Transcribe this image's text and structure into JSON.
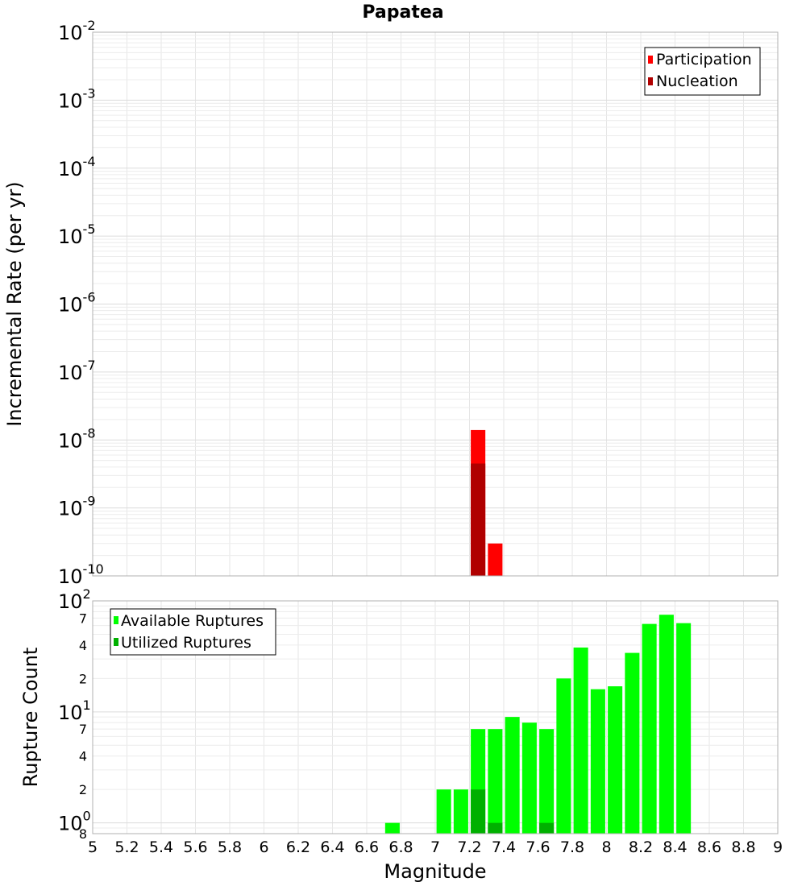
{
  "chart_data": [
    {
      "type": "bar",
      "title": "Papatea",
      "xlabel": "",
      "ylabel": "Incremental Rate (per yr)",
      "xlim": [
        5,
        9
      ],
      "ylim": [
        1e-10,
        0.01
      ],
      "yscale": "log",
      "y_ticks": [
        {
          "base": "10",
          "exp": "-10"
        },
        {
          "base": "10",
          "exp": "-9"
        },
        {
          "base": "10",
          "exp": "-8"
        },
        {
          "base": "10",
          "exp": "-7"
        },
        {
          "base": "10",
          "exp": "-6"
        },
        {
          "base": "10",
          "exp": "-5"
        },
        {
          "base": "10",
          "exp": "-4"
        },
        {
          "base": "10",
          "exp": "-3"
        },
        {
          "base": "10",
          "exp": "-2"
        }
      ],
      "grid": true,
      "legend_position": "top-right",
      "series": [
        {
          "name": "Participation",
          "color": "#ff0000",
          "points": [
            {
              "x": 7.25,
              "y": 1.4e-08
            },
            {
              "x": 7.35,
              "y": 3e-10
            }
          ]
        },
        {
          "name": "Nucleation",
          "color": "#b00000",
          "points": [
            {
              "x": 7.25,
              "y": 4.5e-09
            }
          ]
        }
      ]
    },
    {
      "type": "bar",
      "xlabel": "Magnitude",
      "ylabel": "Rupture Count",
      "xlim": [
        5,
        9
      ],
      "ylim": [
        0.8,
        100
      ],
      "yscale": "log",
      "x_ticks": [
        "5",
        "5.2",
        "5.4",
        "5.6",
        "5.8",
        "6",
        "6.2",
        "6.4",
        "6.6",
        "6.8",
        "7",
        "7.2",
        "7.4",
        "7.6",
        "7.8",
        "8",
        "8.2",
        "8.4",
        "8.6",
        "8.8",
        "9"
      ],
      "y_major_ticks": [
        {
          "base": "10",
          "exp": "0"
        },
        {
          "base": "10",
          "exp": "1"
        },
        {
          "base": "10",
          "exp": "2"
        }
      ],
      "y_minor_ticks": [
        {
          "value": 0.8,
          "label": "8"
        },
        {
          "value": 2,
          "label": "2"
        },
        {
          "value": 4,
          "label": "4"
        },
        {
          "value": 7,
          "label": "7"
        },
        {
          "value": 20,
          "label": "2"
        },
        {
          "value": 40,
          "label": "4"
        },
        {
          "value": 70,
          "label": "7"
        }
      ],
      "grid": true,
      "legend_position": "top-left",
      "series": [
        {
          "name": "Available Ruptures",
          "color": "#00ff00",
          "points": [
            {
              "x": 6.75,
              "y": 1
            },
            {
              "x": 7.05,
              "y": 2
            },
            {
              "x": 7.15,
              "y": 2
            },
            {
              "x": 7.25,
              "y": 7
            },
            {
              "x": 7.35,
              "y": 7
            },
            {
              "x": 7.45,
              "y": 9
            },
            {
              "x": 7.55,
              "y": 8
            },
            {
              "x": 7.65,
              "y": 7
            },
            {
              "x": 7.75,
              "y": 20
            },
            {
              "x": 7.85,
              "y": 38
            },
            {
              "x": 7.95,
              "y": 16
            },
            {
              "x": 8.05,
              "y": 17
            },
            {
              "x": 8.15,
              "y": 34
            },
            {
              "x": 8.25,
              "y": 62
            },
            {
              "x": 8.35,
              "y": 75
            },
            {
              "x": 8.45,
              "y": 63
            }
          ]
        },
        {
          "name": "Utilized Ruptures",
          "color": "#00b000",
          "points": [
            {
              "x": 7.25,
              "y": 2
            },
            {
              "x": 7.35,
              "y": 1
            },
            {
              "x": 7.65,
              "y": 1
            }
          ]
        }
      ]
    }
  ]
}
